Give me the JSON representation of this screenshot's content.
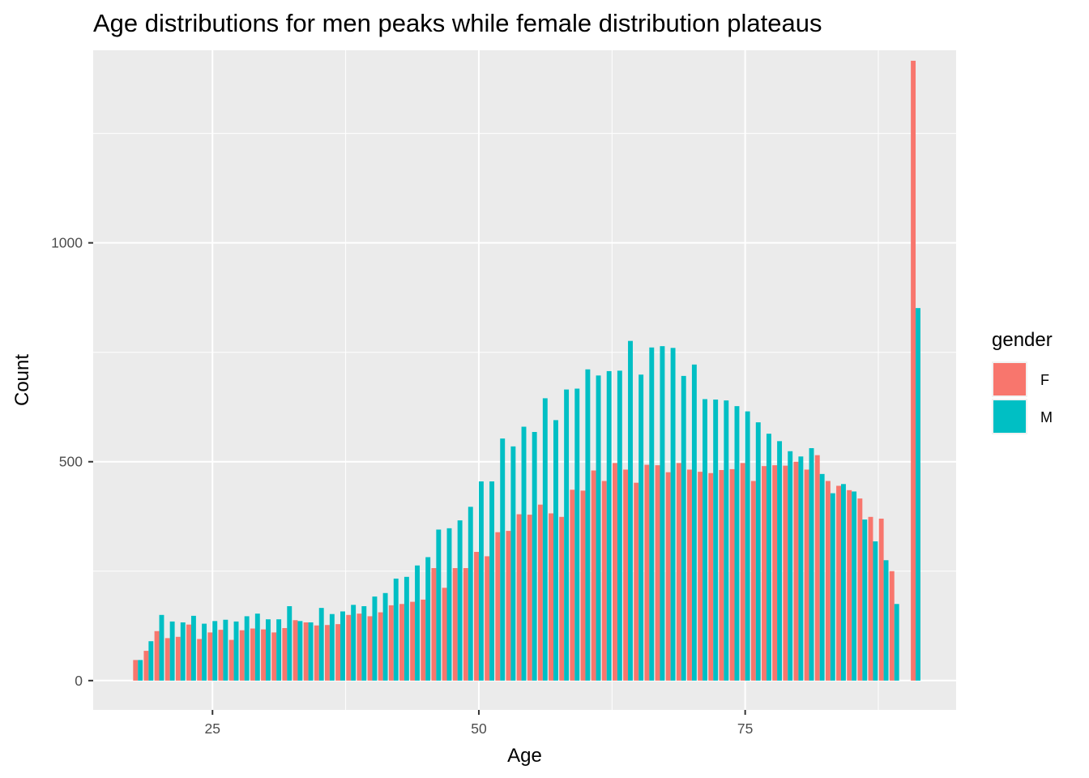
{
  "chart_data": {
    "type": "bar",
    "title": "Age distributions for men peaks while female distribution plateaus",
    "xlabel": "Age",
    "ylabel": "Count",
    "xlim": [
      13.8,
      94.8
    ],
    "ylim": [
      -67,
      1440
    ],
    "x_ticks": [
      25,
      50,
      75
    ],
    "y_ticks": [
      0,
      500,
      1000
    ],
    "grid": true,
    "legend": {
      "title": "gender",
      "position": "right",
      "entries": [
        {
          "label": "F",
          "color": "#F8766D"
        },
        {
          "label": "M",
          "color": "#00BFC4"
        }
      ]
    },
    "x": [
      18,
      19,
      20,
      21,
      22,
      23,
      24,
      25,
      26,
      27,
      28,
      29,
      30,
      31,
      32,
      33,
      34,
      35,
      36,
      37,
      38,
      39,
      40,
      41,
      42,
      43,
      44,
      45,
      46,
      47,
      48,
      49,
      50,
      51,
      52,
      53,
      54,
      55,
      56,
      57,
      58,
      59,
      60,
      61,
      62,
      63,
      64,
      65,
      66,
      67,
      68,
      69,
      70,
      71,
      72,
      73,
      74,
      75,
      76,
      77,
      78,
      79,
      80,
      81,
      82,
      83,
      84,
      85,
      86,
      87,
      88,
      89,
      91
    ],
    "series": [
      {
        "name": "F",
        "color": "#F8766D",
        "values": [
          47,
          68,
          113,
          97,
          100,
          128,
          95,
          110,
          116,
          93,
          115,
          119,
          117,
          110,
          120,
          138,
          133,
          126,
          127,
          129,
          150,
          153,
          147,
          156,
          172,
          175,
          180,
          185,
          257,
          212,
          257,
          257,
          294,
          284,
          339,
          342,
          380,
          379,
          402,
          382,
          374,
          436,
          434,
          480,
          456,
          497,
          482,
          452,
          493,
          492,
          476,
          497,
          482,
          477,
          474,
          481,
          483,
          497,
          456,
          490,
          492,
          491,
          500,
          482,
          515,
          456,
          445,
          435,
          416,
          374,
          370,
          250,
          1416
        ]
      },
      {
        "name": "M",
        "color": "#00BFC4",
        "values": [
          47,
          90,
          150,
          135,
          133,
          148,
          130,
          136,
          139,
          135,
          147,
          153,
          140,
          140,
          170,
          136,
          133,
          166,
          152,
          158,
          173,
          170,
          192,
          200,
          233,
          237,
          263,
          282,
          345,
          348,
          366,
          397,
          455,
          455,
          553,
          535,
          580,
          568,
          645,
          595,
          665,
          667,
          711,
          697,
          707,
          708,
          776,
          699,
          761,
          764,
          760,
          696,
          722,
          643,
          642,
          640,
          627,
          615,
          590,
          564,
          547,
          524,
          512,
          531,
          472,
          428,
          449,
          432,
          368,
          318,
          275,
          175,
          851
        ]
      }
    ]
  }
}
